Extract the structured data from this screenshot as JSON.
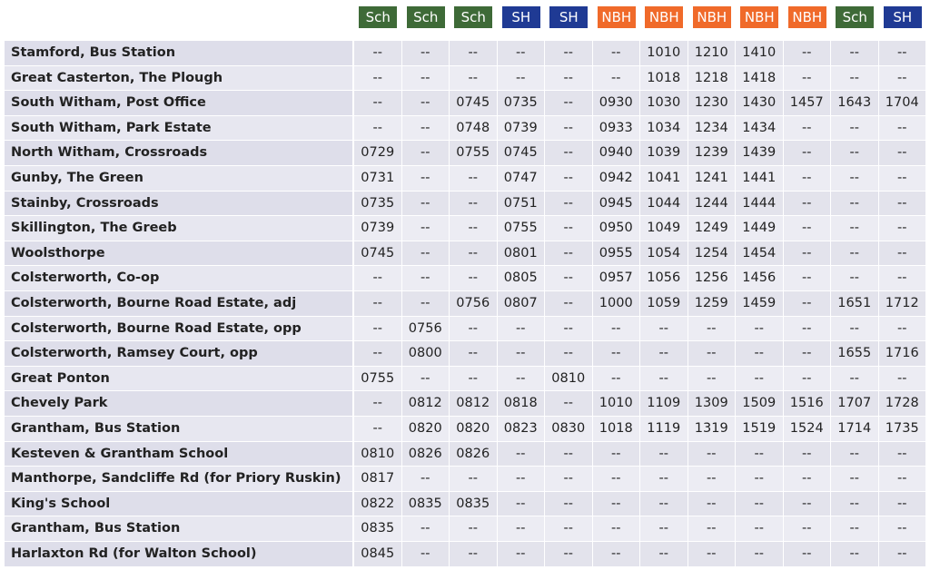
{
  "header": {
    "services": [
      {
        "label": "Sch",
        "color": "#3e6a37"
      },
      {
        "label": "Sch",
        "color": "#3e6a37"
      },
      {
        "label": "Sch",
        "color": "#3e6a37"
      },
      {
        "label": "SH",
        "color": "#1f3a94"
      },
      {
        "label": "SH",
        "color": "#1f3a94"
      },
      {
        "label": "NBH",
        "color": "#f06a2a"
      },
      {
        "label": "NBH",
        "color": "#f06a2a"
      },
      {
        "label": "NBH",
        "color": "#f06a2a"
      },
      {
        "label": "NBH",
        "color": "#f06a2a"
      },
      {
        "label": "NBH",
        "color": "#f06a2a"
      },
      {
        "label": "Sch",
        "color": "#3e6a37"
      },
      {
        "label": "SH",
        "color": "#1f3a94"
      }
    ]
  },
  "table": {
    "rows": [
      {
        "stop": "Stamford, Bus Station",
        "times": [
          "--",
          "--",
          "--",
          "--",
          "--",
          "--",
          "1010",
          "1210",
          "1410",
          "--",
          "--",
          "--"
        ]
      },
      {
        "stop": "Great Casterton, The Plough",
        "times": [
          "--",
          "--",
          "--",
          "--",
          "--",
          "--",
          "1018",
          "1218",
          "1418",
          "--",
          "--",
          "--"
        ]
      },
      {
        "stop": "South Witham, Post Office",
        "times": [
          "--",
          "--",
          "0745",
          "0735",
          "--",
          "0930",
          "1030",
          "1230",
          "1430",
          "1457",
          "1643",
          "1704"
        ]
      },
      {
        "stop": "South Witham, Park Estate",
        "times": [
          "--",
          "--",
          "0748",
          "0739",
          "--",
          "0933",
          "1034",
          "1234",
          "1434",
          "--",
          "--",
          "--"
        ]
      },
      {
        "stop": "North Witham, Crossroads",
        "times": [
          "0729",
          "--",
          "0755",
          "0745",
          "--",
          "0940",
          "1039",
          "1239",
          "1439",
          "--",
          "--",
          "--"
        ]
      },
      {
        "stop": "Gunby, The Green",
        "times": [
          "0731",
          "--",
          "--",
          "0747",
          "--",
          "0942",
          "1041",
          "1241",
          "1441",
          "--",
          "--",
          "--"
        ]
      },
      {
        "stop": "Stainby, Crossroads",
        "times": [
          "0735",
          "--",
          "--",
          "0751",
          "--",
          "0945",
          "1044",
          "1244",
          "1444",
          "--",
          "--",
          "--"
        ]
      },
      {
        "stop": "Skillington, The Greeb",
        "times": [
          "0739",
          "--",
          "--",
          "0755",
          "--",
          "0950",
          "1049",
          "1249",
          "1449",
          "--",
          "--",
          "--"
        ]
      },
      {
        "stop": "Woolsthorpe",
        "times": [
          "0745",
          "--",
          "--",
          "0801",
          "--",
          "0955",
          "1054",
          "1254",
          "1454",
          "--",
          "--",
          "--"
        ]
      },
      {
        "stop": "Colsterworth, Co-op",
        "times": [
          "--",
          "--",
          "--",
          "0805",
          "--",
          "0957",
          "1056",
          "1256",
          "1456",
          "--",
          "--",
          "--"
        ]
      },
      {
        "stop": "Colsterworth, Bourne Road Estate, adj",
        "times": [
          "--",
          "--",
          "0756",
          "0807",
          "--",
          "1000",
          "1059",
          "1259",
          "1459",
          "--",
          "1651",
          "1712"
        ]
      },
      {
        "stop": "Colsterworth, Bourne Road Estate, opp",
        "times": [
          "--",
          "0756",
          "--",
          "--",
          "--",
          "--",
          "--",
          "--",
          "--",
          "--",
          "--",
          "--"
        ]
      },
      {
        "stop": "Colsterworth, Ramsey Court, opp",
        "times": [
          "--",
          "0800",
          "--",
          "--",
          "--",
          "--",
          "--",
          "--",
          "--",
          "--",
          "1655",
          "1716"
        ]
      },
      {
        "stop": "Great Ponton",
        "times": [
          "0755",
          "--",
          "--",
          "--",
          "0810",
          "--",
          "--",
          "--",
          "--",
          "--",
          "--",
          "--"
        ]
      },
      {
        "stop": "Chevely Park",
        "times": [
          "--",
          "0812",
          "0812",
          "0818",
          "--",
          "1010",
          "1109",
          "1309",
          "1509",
          "1516",
          "1707",
          "1728"
        ]
      },
      {
        "stop": "Grantham, Bus Station",
        "times": [
          "--",
          "0820",
          "0820",
          "0823",
          "0830",
          "1018",
          "1119",
          "1319",
          "1519",
          "1524",
          "1714",
          "1735"
        ]
      },
      {
        "stop": "Kesteven & Grantham School",
        "times": [
          "0810",
          "0826",
          "0826",
          "--",
          "--",
          "--",
          "--",
          "--",
          "--",
          "--",
          "--",
          "--"
        ]
      },
      {
        "stop": "Manthorpe, Sandcliffe Rd (for Priory Ruskin)",
        "times": [
          "0817",
          "--",
          "--",
          "--",
          "--",
          "--",
          "--",
          "--",
          "--",
          "--",
          "--",
          "--"
        ]
      },
      {
        "stop": "King's School",
        "times": [
          "0822",
          "0835",
          "0835",
          "--",
          "--",
          "--",
          "--",
          "--",
          "--",
          "--",
          "--",
          "--"
        ]
      },
      {
        "stop": "Grantham, Bus Station",
        "times": [
          "0835",
          "--",
          "--",
          "--",
          "--",
          "--",
          "--",
          "--",
          "--",
          "--",
          "--",
          "--"
        ]
      },
      {
        "stop": "Harlaxton Rd (for Walton School)",
        "times": [
          "0845",
          "--",
          "--",
          "--",
          "--",
          "--",
          "--",
          "--",
          "--",
          "--",
          "--",
          "--"
        ]
      }
    ]
  }
}
